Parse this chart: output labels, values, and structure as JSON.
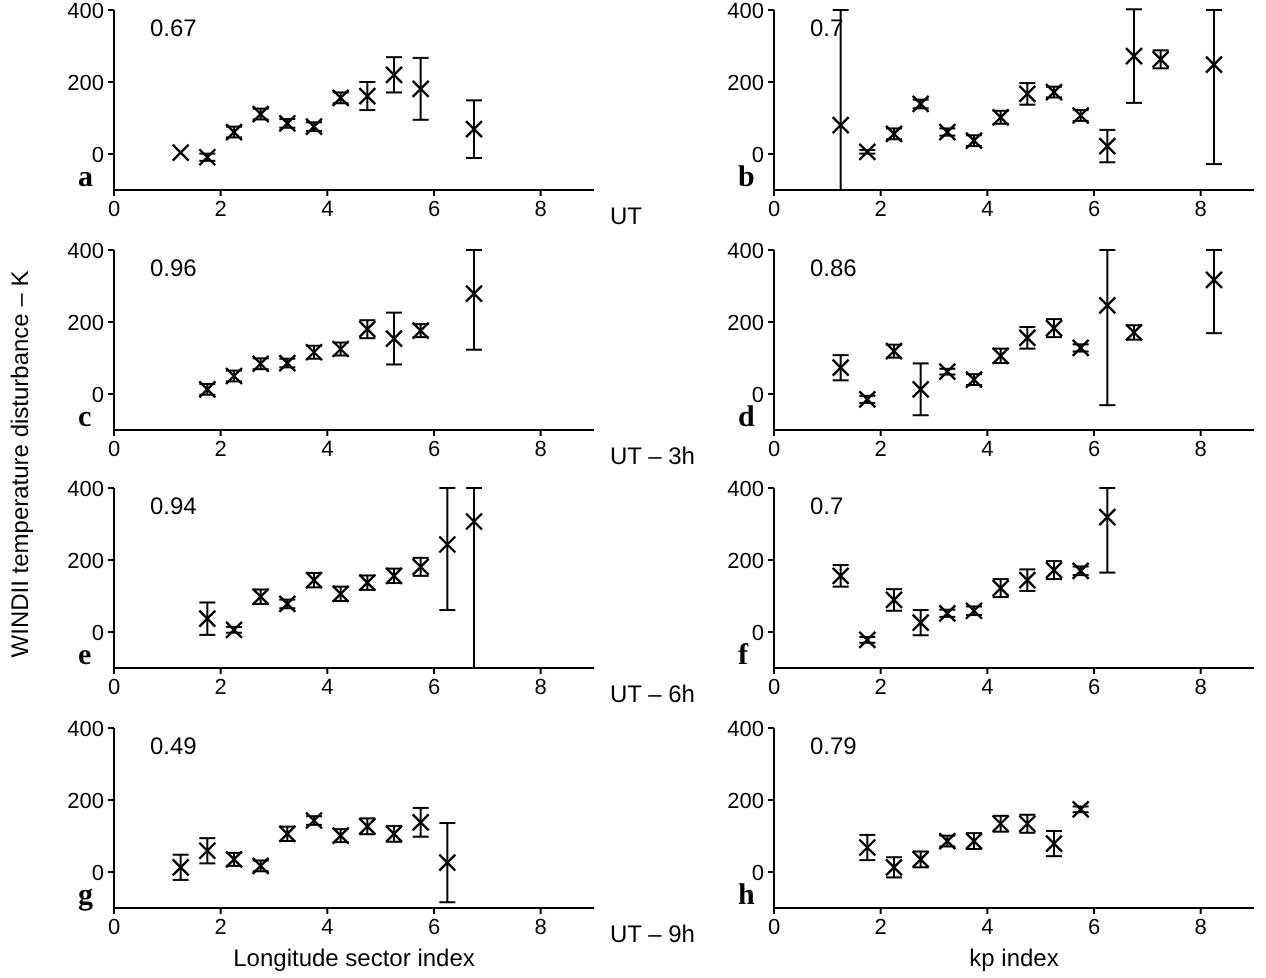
{
  "chart_data": [
    {
      "type": "scatter",
      "ylabel": "WINDII temperature disturbance – K",
      "x": [
        1.25,
        1.75,
        2.25,
        2.75,
        3.25,
        3.75,
        4.25,
        4.75,
        5.25,
        5.75,
        6.75
      ],
      "series": [
        {
          "color": "#000000",
          "values": [
            4,
            -9,
            61,
            111,
            85,
            76,
            156,
            161,
            220,
            181,
            69
          ],
          "errors": [
            null,
            10,
            15,
            15,
            12,
            12,
            15,
            39,
            49,
            86,
            80
          ]
        }
      ],
      "xlim": [
        0,
        9
      ],
      "ylim": [
        -100,
        400
      ],
      "xticks": [
        0,
        2,
        4,
        6,
        8
      ],
      "yticks": [
        0,
        200,
        400
      ],
      "marker": "cross",
      "annotations": [
        "0.67",
        "a",
        "UT"
      ]
    },
    {
      "type": "scatter",
      "x": [
        1.25,
        1.75,
        2.25,
        2.75,
        3.25,
        3.75,
        4.25,
        4.75,
        5.25,
        5.75,
        6.25,
        6.75,
        7.25,
        8.25
      ],
      "series": [
        {
          "color": "#000000",
          "values": [
            80,
            6,
            56,
            139,
            61,
            37,
            102,
            167,
            172,
            107,
            22,
            272,
            263,
            248
          ],
          "errors": [
            [
              -100,
              400
            ],
            5,
            15,
            12,
            10,
            15,
            18,
            30,
            15,
            15,
            45,
            130,
            25,
            [
              -28,
              400
            ]
          ]
        }
      ],
      "xlim": [
        0,
        9
      ],
      "ylim": [
        -100,
        400
      ],
      "xticks": [
        0,
        2,
        4,
        6,
        8
      ],
      "yticks": [
        0,
        200,
        400
      ],
      "marker": "cross",
      "annotations": [
        "0.7",
        "b"
      ]
    },
    {
      "type": "scatter",
      "x": [
        1.75,
        2.25,
        2.75,
        3.25,
        3.75,
        4.25,
        4.75,
        5.25,
        5.75,
        6.75
      ],
      "series": [
        {
          "color": "#000000",
          "values": [
            13,
            50,
            84,
            86,
            116,
            125,
            180,
            154,
            176,
            279
          ],
          "errors": [
            15,
            15,
            15,
            12,
            18,
            18,
            25,
            72,
            18,
            [
              123,
              400
            ]
          ]
        }
      ],
      "xlim": [
        0,
        9
      ],
      "ylim": [
        -100,
        400
      ],
      "xticks": [
        0,
        2,
        4,
        6,
        8
      ],
      "yticks": [
        0,
        200,
        400
      ],
      "marker": "cross",
      "annotations": [
        "0.96",
        "c",
        "UT – 3h"
      ]
    },
    {
      "type": "scatter",
      "x": [
        1.25,
        1.75,
        2.25,
        2.75,
        3.25,
        3.75,
        4.25,
        4.75,
        5.25,
        5.75,
        6.25,
        6.75,
        8.25
      ],
      "series": [
        {
          "color": "#000000",
          "values": [
            73,
            -15,
            119,
            13,
            62,
            40,
            106,
            156,
            183,
            128,
            246,
            171,
            317
          ],
          "errors": [
            35,
            10,
            18,
            72,
            8,
            15,
            20,
            30,
            25,
            10,
            [
              -31,
              400
            ],
            20,
            [
              169,
              400
            ]
          ]
        }
      ],
      "xlim": [
        0,
        9
      ],
      "ylim": [
        -100,
        400
      ],
      "xticks": [
        0,
        2,
        4,
        6,
        8
      ],
      "yticks": [
        0,
        200,
        400
      ],
      "marker": "cross",
      "annotations": [
        "0.86",
        "d"
      ]
    },
    {
      "type": "scatter",
      "x": [
        1.75,
        2.25,
        2.75,
        3.25,
        3.75,
        4.25,
        4.75,
        5.25,
        5.75,
        6.25,
        6.75
      ],
      "series": [
        {
          "color": "#000000",
          "values": [
            37,
            6,
            98,
            78,
            144,
            106,
            137,
            156,
            181,
            243,
            307
          ],
          "errors": [
            45,
            8,
            20,
            12,
            20,
            20,
            20,
            20,
            25,
            [
              61,
              400
            ],
            [
              -100,
              400
            ]
          ]
        }
      ],
      "xlim": [
        0,
        9
      ],
      "ylim": [
        -100,
        400
      ],
      "xticks": [
        0,
        2,
        4,
        6,
        8
      ],
      "yticks": [
        0,
        200,
        400
      ],
      "marker": "cross",
      "annotations": [
        "0.94",
        "e",
        "UT – 6h"
      ]
    },
    {
      "type": "scatter",
      "x": [
        1.25,
        1.75,
        2.25,
        2.75,
        3.25,
        3.75,
        4.25,
        4.75,
        5.25,
        5.75,
        6.25
      ],
      "series": [
        {
          "color": "#000000",
          "values": [
            156,
            -22,
            89,
            26,
            52,
            59,
            122,
            144,
            172,
            170,
            319
          ],
          "errors": [
            30,
            8,
            30,
            35,
            10,
            12,
            25,
            30,
            25,
            12,
            [
              165,
              400
            ]
          ]
        }
      ],
      "xlim": [
        0,
        9
      ],
      "ylim": [
        -100,
        400
      ],
      "xticks": [
        0,
        2,
        4,
        6,
        8
      ],
      "yticks": [
        0,
        200,
        400
      ],
      "marker": "cross",
      "annotations": [
        "0.7",
        "f"
      ]
    },
    {
      "type": "scatter",
      "xlabel": "Longitude sector index",
      "x": [
        1.25,
        1.75,
        2.25,
        2.75,
        3.25,
        3.75,
        4.25,
        4.75,
        5.25,
        5.75,
        6.25
      ],
      "series": [
        {
          "color": "#000000",
          "values": [
            13,
            59,
            35,
            17,
            106,
            143,
            101,
            127,
            106,
            138,
            26
          ],
          "errors": [
            35,
            35,
            18,
            15,
            20,
            12,
            18,
            22,
            22,
            40,
            110
          ]
        }
      ],
      "xlim": [
        0,
        9
      ],
      "ylim": [
        -100,
        400
      ],
      "xticks": [
        0,
        2,
        4,
        6,
        8
      ],
      "yticks": [
        0,
        200,
        400
      ],
      "marker": "cross",
      "annotations": [
        "0.49",
        "g",
        "UT – 9h"
      ]
    },
    {
      "type": "scatter",
      "xlabel": "kp index",
      "x": [
        1.75,
        2.25,
        2.75,
        3.25,
        3.75,
        4.25,
        4.75,
        5.25,
        5.75
      ],
      "series": [
        {
          "color": "#000000",
          "values": [
            68,
            13,
            35,
            86,
            86,
            134,
            134,
            79,
            174
          ],
          "errors": [
            35,
            28,
            22,
            15,
            22,
            22,
            25,
            35,
            8
          ]
        }
      ],
      "xlim": [
        0,
        9
      ],
      "ylim": [
        -100,
        400
      ],
      "xticks": [
        0,
        2,
        4,
        6,
        8
      ],
      "yticks": [
        0,
        200,
        400
      ],
      "marker": "cross",
      "annotations": [
        "0.79",
        "h"
      ]
    }
  ]
}
